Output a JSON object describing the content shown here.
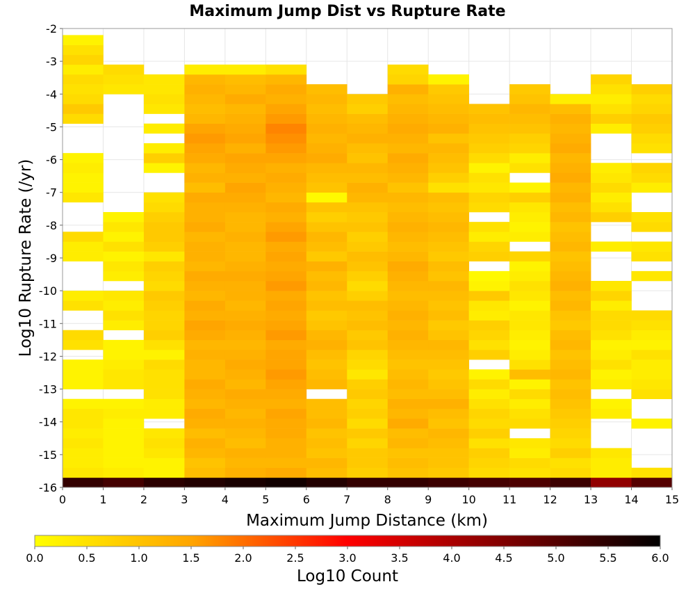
{
  "chart_data": {
    "type": "heatmap",
    "title": "Maximum Jump Dist vs Rupture Rate",
    "xlabel": "Maximum Jump Distance (km)",
    "ylabel": "Log10 Rupture Rate (/yr)",
    "xlim": [
      0,
      15
    ],
    "ylim": [
      -16,
      -2
    ],
    "x_bin_width": 1,
    "y_bin_width": 0.3,
    "x_ticks": [
      "0",
      "1",
      "2",
      "3",
      "4",
      "5",
      "6",
      "7",
      "8",
      "9",
      "10",
      "11",
      "12",
      "13",
      "14",
      "15"
    ],
    "y_ticks": [
      "-2",
      "-3",
      "-4",
      "-5",
      "-6",
      "-7",
      "-8",
      "-9",
      "-10",
      "-11",
      "-12",
      "-13",
      "-14",
      "-15",
      "-16"
    ],
    "grid": true,
    "colorbar": {
      "label": "Log10 Count",
      "range": [
        0,
        6
      ],
      "ticks": [
        "0.0",
        "0.5",
        "1.0",
        "1.5",
        "2.0",
        "2.5",
        "3.0",
        "3.5",
        "4.0",
        "4.5",
        "5.0",
        "5.5",
        "6.0"
      ],
      "colors": [
        "#ffff00",
        "#ffa500",
        "#ff0000",
        "#000000"
      ],
      "placement": "bottom"
    },
    "columns": [
      {
        "x_start": 0,
        "values": [
          5.4,
          0.4,
          0.3,
          0.3,
          0.4,
          0.3,
          0.4,
          0.4,
          0.2,
          null,
          0.2,
          0.2,
          0.2,
          null,
          0.5,
          0.6,
          null,
          null,
          0.5,
          0.3,
          null,
          null,
          null,
          0.3,
          0.3,
          0.6,
          null,
          null,
          null,
          0.4,
          0.2,
          0.2,
          0.3,
          0.2,
          null,
          null,
          null,
          0.6,
          0.9,
          0.6,
          0.5,
          0.6,
          0.3,
          0.7,
          0.5,
          0.2
        ]
      },
      {
        "x_start": 1,
        "values": [
          5.2,
          0.3,
          0.2,
          0.2,
          0.2,
          0.2,
          0.2,
          0.3,
          0.2,
          null,
          0.4,
          0.4,
          0.3,
          0.2,
          0.2,
          null,
          0.3,
          0.5,
          0.3,
          0.4,
          null,
          0.3,
          0.4,
          0.2,
          0.5,
          0.2,
          0.4,
          0.2,
          null,
          null,
          null,
          null,
          null,
          null,
          null,
          null,
          null,
          null,
          null,
          null,
          0.4,
          0.5,
          0.6
        ]
      },
      {
        "x_start": 2,
        "values": [
          5.5,
          0.2,
          0.2,
          0.4,
          0.5,
          0.4,
          null,
          0.3,
          0.3,
          0.5,
          0.5,
          0.5,
          0.6,
          0.2,
          0.5,
          0.8,
          0.7,
          0.7,
          0.8,
          0.9,
          0.6,
          0.7,
          0.8,
          0.4,
          0.8,
          0.9,
          0.9,
          0.8,
          0.6,
          0.5,
          null,
          null,
          0.2,
          0.8,
          0.3,
          null,
          0.3,
          null,
          0.4,
          0.5,
          0.4,
          0.4
        ]
      },
      {
        "x_start": 3,
        "values": [
          5.6,
          1.1,
          1.0,
          1.2,
          1.3,
          1.1,
          1.3,
          1.4,
          1.2,
          1.3,
          1.4,
          1.2,
          1.2,
          1.3,
          1.2,
          1.4,
          1.5,
          1.3,
          1.4,
          1.2,
          1.3,
          1.4,
          1.2,
          1.3,
          1.3,
          1.2,
          1.4,
          1.3,
          1.3,
          1.4,
          1.1,
          1.3,
          1.2,
          1.4,
          1.5,
          1.6,
          1.5,
          1.2,
          1.1,
          1.2,
          1.3,
          1.2,
          0.3
        ]
      },
      {
        "x_start": 4,
        "values": [
          5.7,
          1.3,
          1.2,
          1.3,
          1.1,
          1.2,
          1.3,
          1.2,
          1.3,
          1.4,
          1.2,
          1.3,
          1.4,
          1.3,
          1.2,
          1.3,
          1.4,
          1.3,
          1.2,
          1.3,
          1.3,
          1.4,
          1.3,
          1.2,
          1.2,
          1.3,
          1.2,
          1.2,
          1.3,
          1.4,
          1.5,
          1.3,
          1.4,
          1.5,
          1.3,
          1.5,
          1.4,
          1.3,
          1.2,
          1.4,
          1.2,
          1.1,
          0.3
        ]
      },
      {
        "x_start": 5,
        "values": [
          5.8,
          1.4,
          1.2,
          1.3,
          1.3,
          1.4,
          1.4,
          1.5,
          1.3,
          1.4,
          1.5,
          1.6,
          1.5,
          1.5,
          1.4,
          1.6,
          1.5,
          1.4,
          1.5,
          1.4,
          1.6,
          1.5,
          1.4,
          1.5,
          1.4,
          1.6,
          1.5,
          1.3,
          1.4,
          1.2,
          1.3,
          1.4,
          1.3,
          1.5,
          1.6,
          1.7,
          1.8,
          1.6,
          1.5,
          1.3,
          1.4,
          1.2,
          0.5
        ]
      },
      {
        "x_start": 6,
        "values": [
          5.6,
          1.1,
          1.2,
          1.0,
          1.1,
          1.0,
          1.2,
          1.1,
          1.1,
          null,
          1.2,
          1.1,
          1.0,
          1.1,
          1.3,
          1.2,
          1.0,
          0.9,
          1.1,
          1.0,
          1.2,
          1.1,
          1.3,
          0.9,
          1.1,
          1.2,
          1.0,
          0.8,
          1.0,
          0.1,
          1.0,
          1.1,
          1.2,
          1.4,
          1.3,
          1.2,
          1.3,
          1.2,
          1.1,
          1.2,
          1.1
        ]
      },
      {
        "x_start": 7,
        "values": [
          5.4,
          0.8,
          0.9,
          0.9,
          0.7,
          0.9,
          0.6,
          0.8,
          0.7,
          0.9,
          0.8,
          0.4,
          0.6,
          0.7,
          1.0,
          0.9,
          1.1,
          1.0,
          1.1,
          0.8,
          0.6,
          0.8,
          1.0,
          1.1,
          0.9,
          0.8,
          1.0,
          0.9,
          1.0,
          1.2,
          1.3,
          1.1,
          1.2,
          1.0,
          1.1,
          1.3,
          1.2,
          1.1,
          0.8,
          0.9
        ]
      },
      {
        "x_start": 8,
        "values": [
          5.4,
          1.0,
          1.1,
          1.0,
          1.2,
          1.1,
          1.4,
          1.2,
          1.3,
          1.1,
          1.2,
          1.1,
          1.0,
          1.1,
          1.2,
          1.3,
          1.2,
          1.3,
          1.2,
          1.1,
          1.2,
          1.3,
          1.4,
          1.2,
          1.1,
          1.2,
          1.3,
          1.2,
          1.1,
          1.2,
          1.0,
          1.2,
          1.3,
          1.4,
          1.2,
          1.3,
          1.4,
          1.3,
          1.2,
          1.1,
          1.3,
          0.7,
          0.6
        ]
      },
      {
        "x_start": 9,
        "values": [
          5.3,
          0.9,
          1.0,
          1.0,
          1.1,
          1.2,
          1.0,
          1.1,
          1.3,
          1.1,
          1.0,
          0.9,
          1.0,
          1.1,
          1.2,
          1.0,
          0.9,
          1.1,
          1.0,
          1.1,
          1.2,
          1.0,
          1.1,
          0.9,
          1.0,
          1.1,
          1.2,
          1.1,
          1.0,
          1.1,
          0.5,
          0.8,
          1.0,
          1.1,
          1.2,
          1.0,
          1.3,
          1.2,
          1.1,
          1.0,
          0.9,
          0.2
        ]
      },
      {
        "x_start": 10,
        "values": [
          5.2,
          0.6,
          0.7,
          0.8,
          0.5,
          0.8,
          0.6,
          0.7,
          0.5,
          0.3,
          0.6,
          0.2,
          null,
          0.8,
          0.5,
          0.7,
          0.8,
          0.3,
          0.4,
          0.9,
          0.2,
          0.1,
          null,
          0.8,
          0.7,
          0.3,
          0.5,
          null,
          0.6,
          0.7,
          0.4,
          0.5,
          0.2,
          0.6,
          0.8,
          0.9,
          1.0,
          1.1,
          1.0
        ]
      },
      {
        "x_start": 11,
        "values": [
          5.1,
          0.5,
          0.6,
          0.3,
          0.4,
          null,
          0.6,
          0.5,
          0.3,
          0.6,
          0.2,
          1.1,
          0.5,
          0.3,
          0.2,
          0.3,
          0.4,
          0.4,
          0.2,
          0.4,
          0.5,
          0.3,
          0.2,
          0.7,
          null,
          0.3,
          0.2,
          0.3,
          0.4,
          0.8,
          0.2,
          null,
          0.5,
          0.3,
          0.7,
          0.8,
          1.0,
          1.1,
          1.2,
          1.0,
          0.9
        ]
      },
      {
        "x_start": 12,
        "values": [
          5.3,
          0.6,
          0.5,
          0.8,
          0.6,
          0.7,
          0.8,
          0.9,
          1.0,
          1.1,
          1.0,
          1.2,
          1.1,
          1.0,
          1.2,
          1.1,
          0.9,
          1.0,
          1.2,
          1.1,
          1.3,
          1.2,
          1.1,
          1.0,
          1.2,
          1.1,
          1.0,
          1.2,
          1.1,
          1.3,
          1.2,
          1.4,
          1.3,
          1.2,
          1.4,
          1.3,
          1.2,
          1.3,
          1.1,
          0.3
        ]
      },
      {
        "x_start": 13,
        "values": [
          4.3,
          0.3,
          0.3,
          0.4,
          null,
          null,
          null,
          0.3,
          0.2,
          null,
          0.3,
          0.2,
          0.5,
          0.3,
          0.2,
          0.5,
          0.6,
          0.6,
          0.3,
          0.7,
          0.4,
          null,
          null,
          null,
          0.3,
          null,
          null,
          0.8,
          0.5,
          0.3,
          0.6,
          0.4,
          0.3,
          null,
          null,
          null,
          0.3,
          0.8,
          0.5,
          0.3,
          0.5,
          0.7
        ]
      },
      {
        "x_start": 14,
        "values": [
          5.0,
          0.5,
          null,
          null,
          null,
          null,
          0.2,
          null,
          null,
          0.5,
          0.4,
          0.3,
          0.3,
          0.5,
          0.2,
          0.3,
          0.5,
          0.6,
          null,
          null,
          null,
          0.4,
          null,
          0.5,
          0.4,
          null,
          0.6,
          0.5,
          null,
          null,
          0.3,
          0.6,
          0.7,
          null,
          0.5,
          0.6,
          0.8,
          0.9,
          0.7,
          0.6,
          0.8
        ]
      }
    ]
  }
}
